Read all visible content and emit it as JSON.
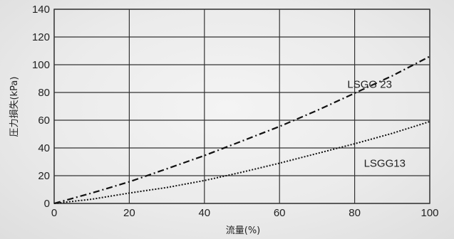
{
  "chart_data": {
    "type": "line",
    "xlabel": "流量(%)",
    "ylabel": "圧力損失(kPa)",
    "xlim": [
      0,
      100
    ],
    "ylim": [
      0,
      140
    ],
    "x_ticks": [
      0,
      20,
      40,
      60,
      80,
      100
    ],
    "y_ticks": [
      0,
      20,
      40,
      60,
      80,
      100,
      120,
      140
    ],
    "x_tick_labels": [
      "0",
      "20",
      "40",
      "60",
      "80",
      "100"
    ],
    "y_tick_labels": [
      "0",
      "20",
      "40",
      "60",
      "80",
      "100",
      "120",
      "140"
    ],
    "grid": true,
    "series": [
      {
        "name": "LSGG 23",
        "line_style": "dash-dot",
        "x": [
          0,
          10,
          20,
          30,
          40,
          50,
          60,
          70,
          80,
          90,
          100
        ],
        "y": [
          0,
          7.5,
          15.6,
          25.0,
          34.5,
          45.0,
          55.5,
          67.0,
          79.5,
          92.0,
          106.0
        ]
      },
      {
        "name": "LSGG13",
        "line_style": "dotted",
        "x": [
          0,
          10,
          20,
          30,
          40,
          50,
          60,
          70,
          80,
          90,
          100
        ],
        "y": [
          0,
          3.0,
          7.5,
          11.5,
          16.5,
          22.5,
          29.0,
          36.0,
          43.0,
          50.5,
          59.0
        ]
      }
    ],
    "annotations": [
      {
        "text": "LSGG 23",
        "x": 84,
        "y": 86
      },
      {
        "text": "LSGG13",
        "x": 88,
        "y": 29
      }
    ]
  },
  "colors": {
    "grid": "#333333",
    "line": "#111111",
    "text": "#222222"
  }
}
